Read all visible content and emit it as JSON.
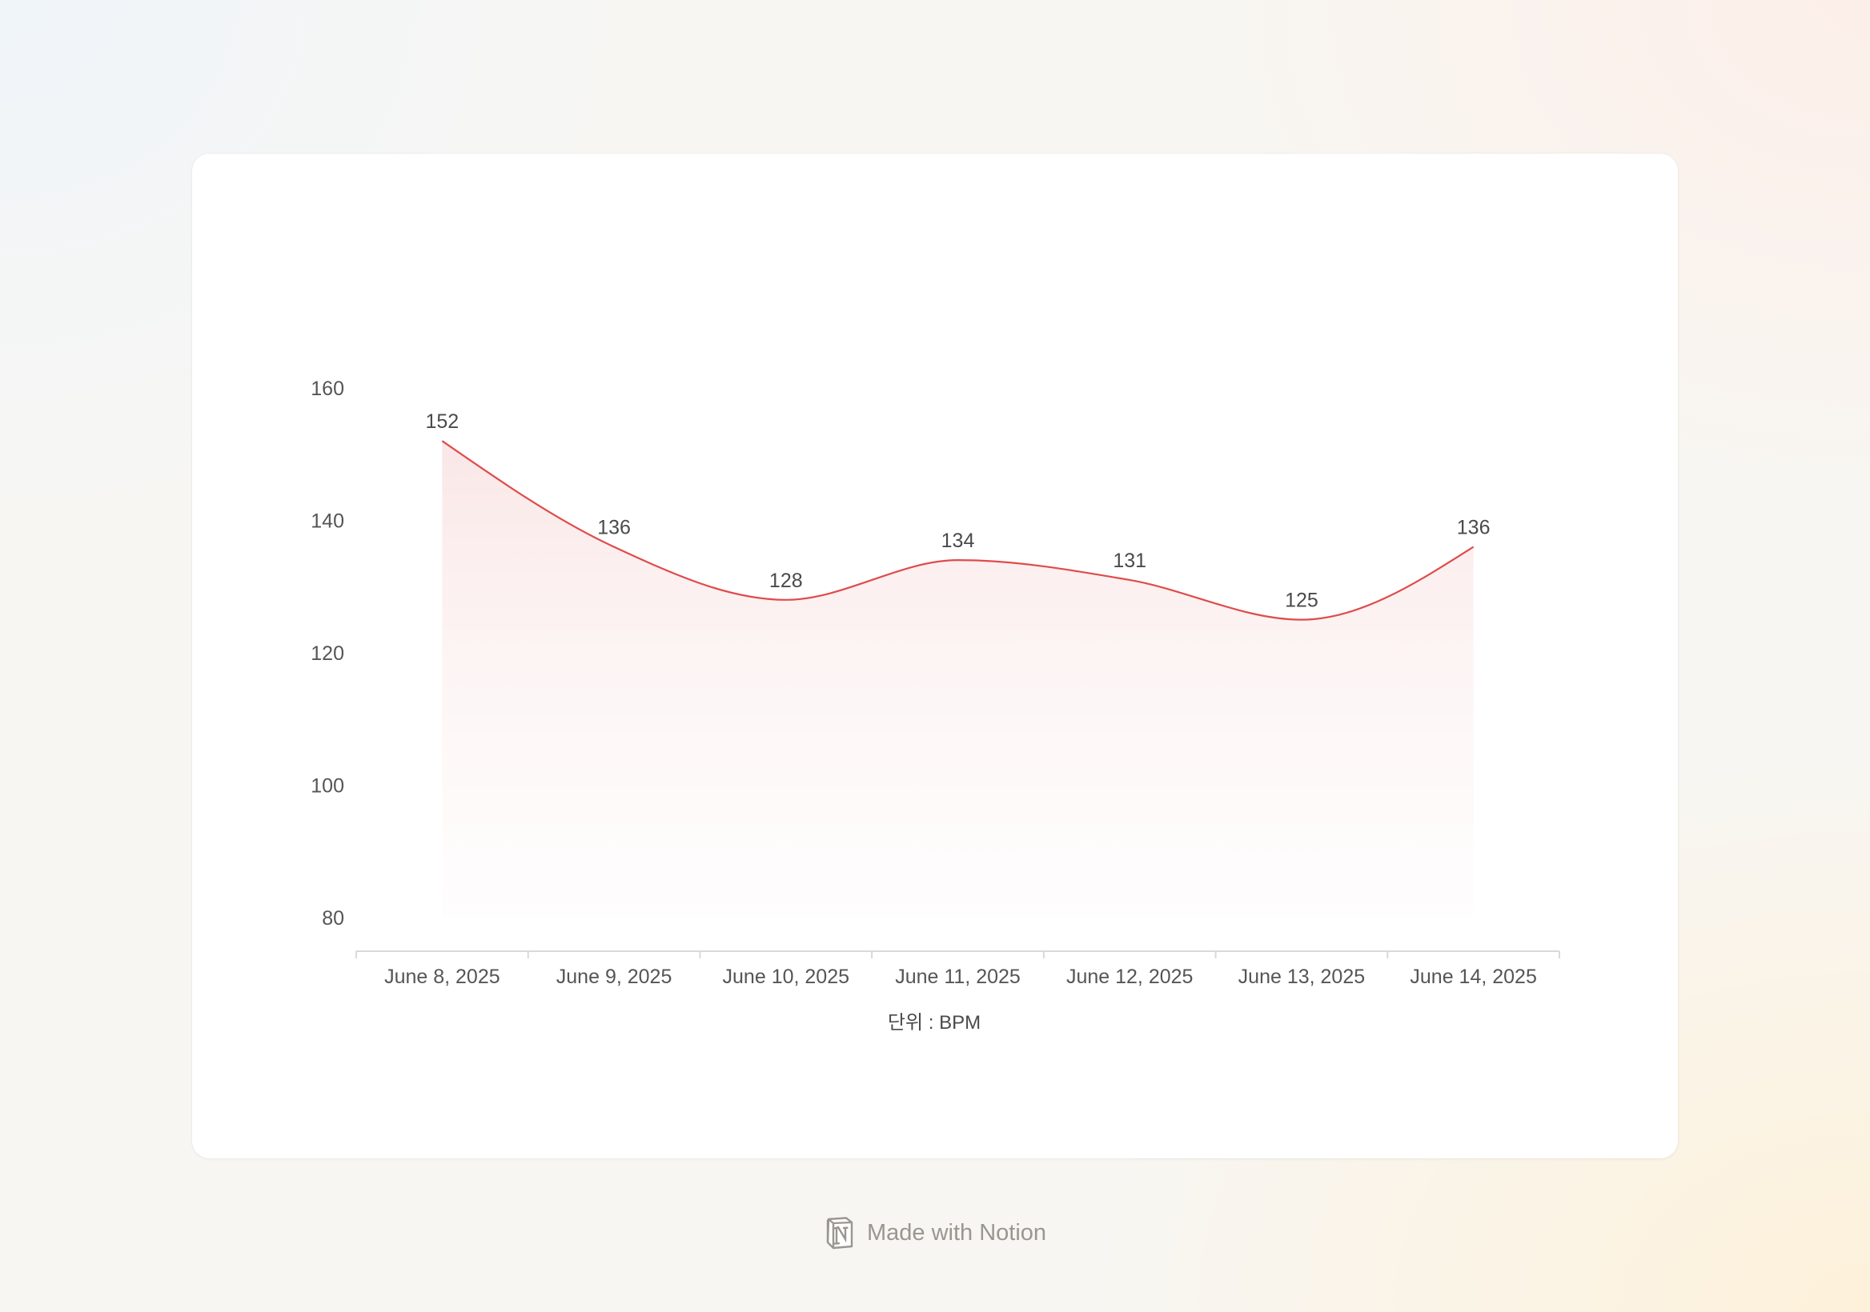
{
  "chart_data": {
    "type": "area",
    "categories": [
      "June 8, 2025",
      "June 9, 2025",
      "June 10, 2025",
      "June 11, 2025",
      "June 12, 2025",
      "June 13, 2025",
      "June 14, 2025"
    ],
    "values": [
      152,
      136,
      128,
      134,
      131,
      125,
      136
    ],
    "ylim": [
      80,
      160
    ],
    "yticks": [
      80,
      100,
      120,
      140,
      160
    ],
    "xlabel": "단위 : BPM",
    "ylabel": "",
    "title": "",
    "grid": false,
    "smooth": true,
    "line_color": "#e04b4b",
    "fill_color": "#f9dede"
  },
  "footer": {
    "text": "Made with Notion",
    "icon": "notion-logo-icon"
  }
}
